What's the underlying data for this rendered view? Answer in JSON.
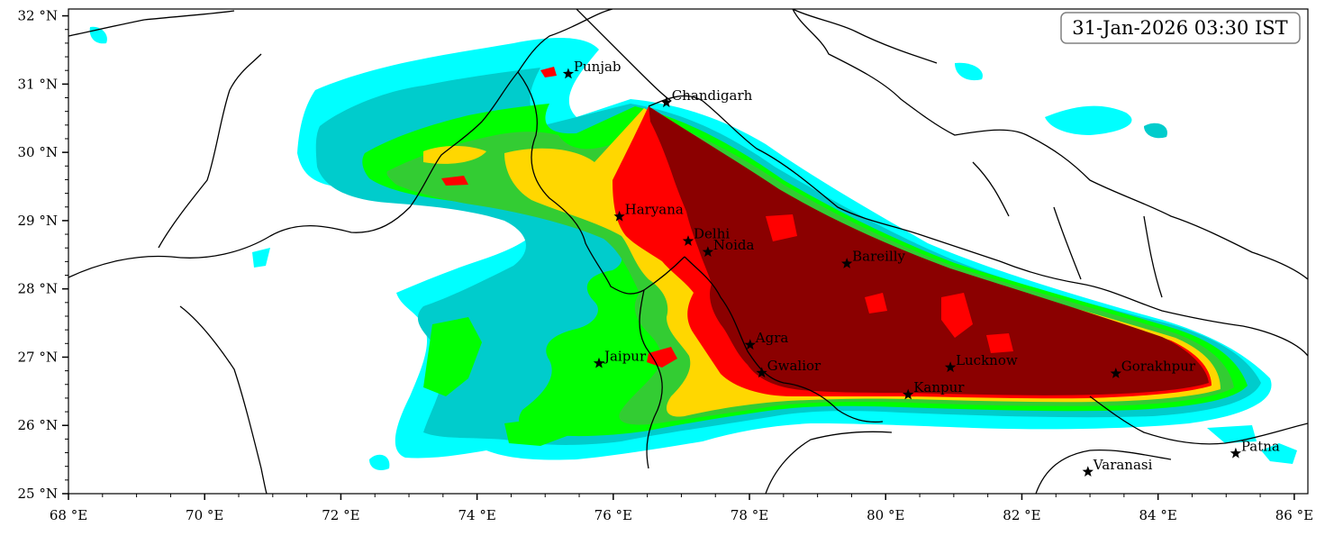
{
  "timestamp": "31-Jan-2026 03:30 IST",
  "extent": {
    "lon_min": 68,
    "lon_max": 86.2,
    "lat_min": 25,
    "lat_max": 32.1
  },
  "x_ticks": [
    {
      "lon": 68,
      "label": "68 °E"
    },
    {
      "lon": 70,
      "label": "70 °E"
    },
    {
      "lon": 72,
      "label": "72 °E"
    },
    {
      "lon": 74,
      "label": "74 °E"
    },
    {
      "lon": 76,
      "label": "76 °E"
    },
    {
      "lon": 78,
      "label": "78 °E"
    },
    {
      "lon": 80,
      "label": "80 °E"
    },
    {
      "lon": 82,
      "label": "82 °E"
    },
    {
      "lon": 84,
      "label": "84 °E"
    },
    {
      "lon": 86,
      "label": "86 °E"
    }
  ],
  "y_ticks": [
    {
      "lat": 25,
      "label": "25 °N"
    },
    {
      "lat": 26,
      "label": "26 °N"
    },
    {
      "lat": 27,
      "label": "27 °N"
    },
    {
      "lat": 28,
      "label": "28 °N"
    },
    {
      "lat": 29,
      "label": "29 °N"
    },
    {
      "lat": 30,
      "label": "30 °N"
    },
    {
      "lat": 31,
      "label": "31 °N"
    },
    {
      "lat": 32,
      "label": "32 °N"
    }
  ],
  "cities": [
    {
      "name": "Punjab",
      "lon": 75.34,
      "lat": 31.15
    },
    {
      "name": "Chandigarh",
      "lon": 76.78,
      "lat": 30.73
    },
    {
      "name": "Haryana",
      "lon": 76.09,
      "lat": 29.06
    },
    {
      "name": "Delhi",
      "lon": 77.1,
      "lat": 28.7
    },
    {
      "name": "Noida",
      "lon": 77.39,
      "lat": 28.54
    },
    {
      "name": "Bareilly",
      "lon": 79.43,
      "lat": 28.37
    },
    {
      "name": "Agra",
      "lon": 78.01,
      "lat": 27.18
    },
    {
      "name": "Jaipur",
      "lon": 75.79,
      "lat": 26.91
    },
    {
      "name": "Gwalior",
      "lon": 78.18,
      "lat": 26.77
    },
    {
      "name": "Lucknow",
      "lon": 80.95,
      "lat": 26.85
    },
    {
      "name": "Kanpur",
      "lon": 80.33,
      "lat": 26.45
    },
    {
      "name": "Gorakhpur",
      "lon": 83.38,
      "lat": 26.76
    },
    {
      "name": "Varanasi",
      "lon": 82.97,
      "lat": 25.32
    },
    {
      "name": "Patna",
      "lon": 85.14,
      "lat": 25.59
    }
  ],
  "fog_levels": [
    {
      "level": 1,
      "color": "#00ffff"
    },
    {
      "level": 2,
      "color": "#00cccc"
    },
    {
      "level": 3,
      "color": "#00ff00"
    },
    {
      "level": 4,
      "color": "#33cc33"
    },
    {
      "level": 5,
      "color": "#ffd700"
    },
    {
      "level": 6,
      "color": "#ff0000"
    },
    {
      "level": 7,
      "color": "#8b0000"
    }
  ]
}
